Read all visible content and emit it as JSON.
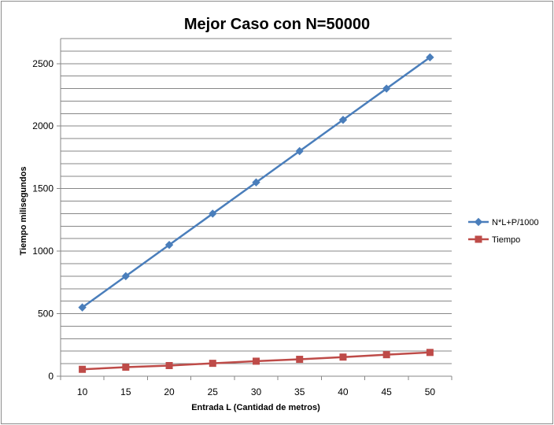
{
  "chart_data": {
    "type": "line",
    "title": "Mejor Caso con N=50000",
    "xlabel": "Entrada L (Cantidad de metros)",
    "ylabel": "Tiempo milisegundos",
    "categories": [
      "10",
      "15",
      "20",
      "25",
      "30",
      "35",
      "40",
      "45",
      "50"
    ],
    "ylim": [
      0,
      2700
    ],
    "yticks": [
      0,
      500,
      1000,
      1500,
      2000,
      2500
    ],
    "minor_grid_step": 100,
    "grid": true,
    "legend_position": "right",
    "series": [
      {
        "name": "N*L+P/1000",
        "values": [
          550,
          800,
          1050,
          1300,
          1550,
          1800,
          2050,
          2300,
          2550
        ],
        "color": "#4a7ebb",
        "marker": "diamond"
      },
      {
        "name": "Tiempo",
        "values": [
          55,
          72,
          85,
          103,
          120,
          135,
          153,
          172,
          190
        ],
        "color": "#be4b48",
        "marker": "square"
      }
    ]
  }
}
